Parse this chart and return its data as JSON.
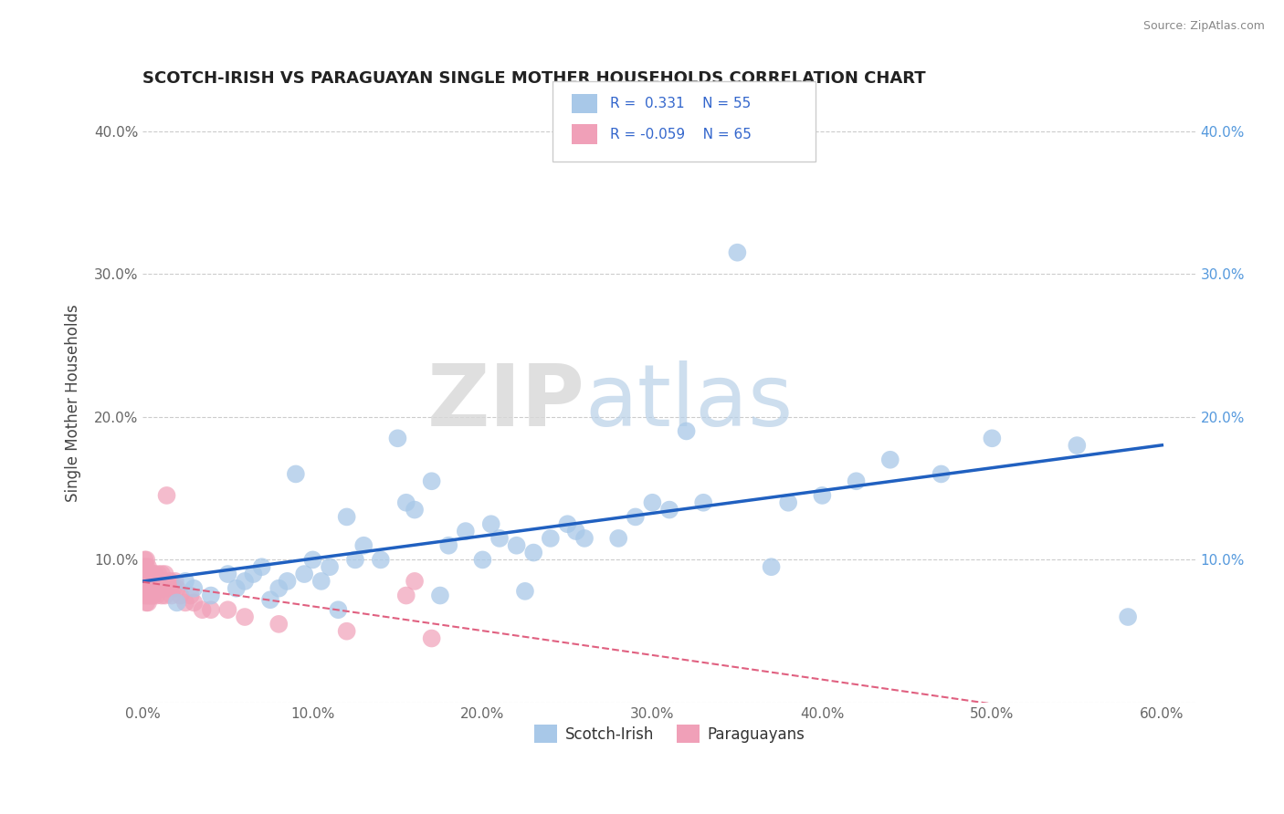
{
  "title": "SCOTCH-IRISH VS PARAGUAYAN SINGLE MOTHER HOUSEHOLDS CORRELATION CHART",
  "source": "Source: ZipAtlas.com",
  "ylabel": "Single Mother Households",
  "xlim": [
    0.0,
    0.62
  ],
  "ylim": [
    0.0,
    0.42
  ],
  "xticks": [
    0.0,
    0.1,
    0.2,
    0.3,
    0.4,
    0.5,
    0.6
  ],
  "yticks": [
    0.0,
    0.1,
    0.2,
    0.3,
    0.4
  ],
  "xticklabels": [
    "0.0%",
    "10.0%",
    "20.0%",
    "30.0%",
    "40.0%",
    "50.0%",
    "60.0%"
  ],
  "yticklabels": [
    "",
    "10.0%",
    "20.0%",
    "30.0%",
    "40.0%"
  ],
  "blue_color": "#a8c8e8",
  "pink_color": "#f0a0b8",
  "blue_line_color": "#2060c0",
  "pink_line_color": "#e06080",
  "watermark_zip": "ZIP",
  "watermark_atlas": "atlas",
  "scotch_irish_x": [
    0.02,
    0.025,
    0.03,
    0.04,
    0.05,
    0.055,
    0.06,
    0.065,
    0.07,
    0.075,
    0.08,
    0.085,
    0.09,
    0.095,
    0.1,
    0.105,
    0.11,
    0.115,
    0.12,
    0.125,
    0.13,
    0.14,
    0.15,
    0.155,
    0.16,
    0.17,
    0.175,
    0.18,
    0.19,
    0.2,
    0.205,
    0.21,
    0.22,
    0.225,
    0.23,
    0.24,
    0.25,
    0.255,
    0.26,
    0.28,
    0.29,
    0.3,
    0.31,
    0.32,
    0.33,
    0.35,
    0.37,
    0.38,
    0.4,
    0.42,
    0.44,
    0.47,
    0.5,
    0.55,
    0.58
  ],
  "scotch_irish_y": [
    0.07,
    0.085,
    0.08,
    0.075,
    0.09,
    0.08,
    0.085,
    0.09,
    0.095,
    0.072,
    0.08,
    0.085,
    0.16,
    0.09,
    0.1,
    0.085,
    0.095,
    0.065,
    0.13,
    0.1,
    0.11,
    0.1,
    0.185,
    0.14,
    0.135,
    0.155,
    0.075,
    0.11,
    0.12,
    0.1,
    0.125,
    0.115,
    0.11,
    0.078,
    0.105,
    0.115,
    0.125,
    0.12,
    0.115,
    0.115,
    0.13,
    0.14,
    0.135,
    0.19,
    0.14,
    0.315,
    0.095,
    0.14,
    0.145,
    0.155,
    0.17,
    0.16,
    0.185,
    0.18,
    0.06
  ],
  "pink_cluster_x": [
    0.001,
    0.001,
    0.001,
    0.001,
    0.001,
    0.002,
    0.002,
    0.002,
    0.002,
    0.002,
    0.002,
    0.002,
    0.002,
    0.003,
    0.003,
    0.003,
    0.003,
    0.003,
    0.003,
    0.003,
    0.004,
    0.004,
    0.004,
    0.004,
    0.005,
    0.005,
    0.005,
    0.005,
    0.006,
    0.006,
    0.006,
    0.007,
    0.007,
    0.008,
    0.008,
    0.009,
    0.009,
    0.01,
    0.01,
    0.011,
    0.011,
    0.012,
    0.012,
    0.013,
    0.013,
    0.014,
    0.015,
    0.016,
    0.017,
    0.018,
    0.019,
    0.02,
    0.022,
    0.025,
    0.028,
    0.03,
    0.035,
    0.04,
    0.05,
    0.06,
    0.08,
    0.12,
    0.155,
    0.17,
    0.16
  ],
  "pink_cluster_y": [
    0.085,
    0.09,
    0.075,
    0.1,
    0.095,
    0.085,
    0.09,
    0.08,
    0.075,
    0.1,
    0.095,
    0.085,
    0.07,
    0.09,
    0.08,
    0.075,
    0.09,
    0.095,
    0.07,
    0.085,
    0.08,
    0.09,
    0.075,
    0.085,
    0.09,
    0.08,
    0.075,
    0.085,
    0.08,
    0.09,
    0.075,
    0.085,
    0.09,
    0.08,
    0.075,
    0.085,
    0.09,
    0.08,
    0.085,
    0.075,
    0.09,
    0.08,
    0.085,
    0.09,
    0.075,
    0.145,
    0.08,
    0.085,
    0.075,
    0.08,
    0.085,
    0.08,
    0.075,
    0.07,
    0.075,
    0.07,
    0.065,
    0.065,
    0.065,
    0.06,
    0.055,
    0.05,
    0.075,
    0.045,
    0.085
  ]
}
